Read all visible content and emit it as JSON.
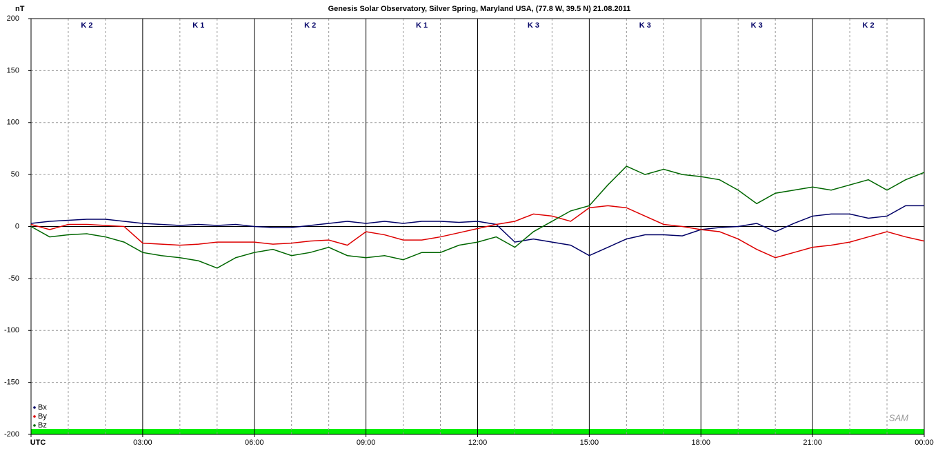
{
  "chart_data": {
    "type": "line",
    "title": "Genesis Solar Observatory, Silver Spring, Maryland USA, (77.8 W, 39.5 N)  21.08.2011",
    "y_label": "nT",
    "annotations": [
      "K 2",
      "K 1",
      "K 2",
      "K 1",
      "K 3",
      "K 3",
      "K 3",
      "K 2"
    ],
    "logo": "SAM",
    "x": [
      0,
      0.5,
      1,
      1.5,
      2,
      2.5,
      3,
      3.5,
      4,
      4.5,
      5,
      5.5,
      6,
      6.5,
      7,
      7.5,
      8,
      8.5,
      9,
      9.5,
      10,
      10.5,
      11,
      11.5,
      12,
      12.5,
      13,
      13.5,
      14,
      14.5,
      15,
      15.5,
      16,
      16.5,
      17,
      17.5,
      18,
      18.5,
      19,
      19.5,
      20,
      20.5,
      21,
      21.5,
      22,
      22.5,
      23,
      23.5,
      24
    ],
    "series": [
      {
        "name": "Bx",
        "color": "#000066",
        "values": [
          3,
          5,
          6,
          7,
          7,
          5,
          3,
          2,
          1,
          2,
          1,
          2,
          0,
          -1,
          -1,
          1,
          3,
          5,
          3,
          5,
          3,
          5,
          5,
          4,
          5,
          2,
          -15,
          -12,
          -15,
          -18,
          -28,
          -20,
          -12,
          -8,
          -8,
          -9,
          -3,
          -1,
          0,
          3,
          -5,
          3,
          10,
          12,
          12,
          8,
          10,
          20,
          20
        ]
      },
      {
        "name": "By",
        "color": "#dd0000",
        "values": [
          2,
          -3,
          2,
          2,
          1,
          0,
          -16,
          -17,
          -18,
          -17,
          -15,
          -15,
          -15,
          -17,
          -16,
          -14,
          -13,
          -18,
          -5,
          -8,
          -13,
          -13,
          -10,
          -6,
          -2,
          2,
          5,
          12,
          10,
          5,
          18,
          20,
          18,
          10,
          2,
          0,
          -3,
          -5,
          -12,
          -22,
          -30,
          -25,
          -20,
          -18,
          -15,
          -10,
          -5,
          -10,
          -14
        ]
      },
      {
        "name": "Bz",
        "color": "#006600",
        "values": [
          0,
          -10,
          -8,
          -7,
          -10,
          -15,
          -25,
          -28,
          -30,
          -33,
          -40,
          -30,
          -25,
          -22,
          -28,
          -25,
          -20,
          -28,
          -30,
          -28,
          -32,
          -25,
          -25,
          -18,
          -15,
          -10,
          -20,
          -5,
          5,
          15,
          20,
          40,
          58,
          50,
          55,
          50,
          48,
          45,
          35,
          22,
          32,
          35,
          38,
          35,
          40,
          45,
          35,
          45,
          52
        ]
      }
    ],
    "xlim": [
      0,
      24
    ],
    "xticks": [
      {
        "value": 0,
        "label": "UTC"
      },
      {
        "value": 3,
        "label": "03:00"
      },
      {
        "value": 6,
        "label": "06:00"
      },
      {
        "value": 9,
        "label": "09:00"
      },
      {
        "value": 12,
        "label": "12:00"
      },
      {
        "value": 15,
        "label": "15:00"
      },
      {
        "value": 18,
        "label": "18:00"
      },
      {
        "value": 21,
        "label": "21:00"
      },
      {
        "value": 24,
        "label": "00:00"
      }
    ],
    "ylim": [
      -200,
      200
    ],
    "yticks": [
      -200,
      -150,
      -100,
      -50,
      0,
      50,
      100,
      150,
      200
    ],
    "grid": true
  }
}
